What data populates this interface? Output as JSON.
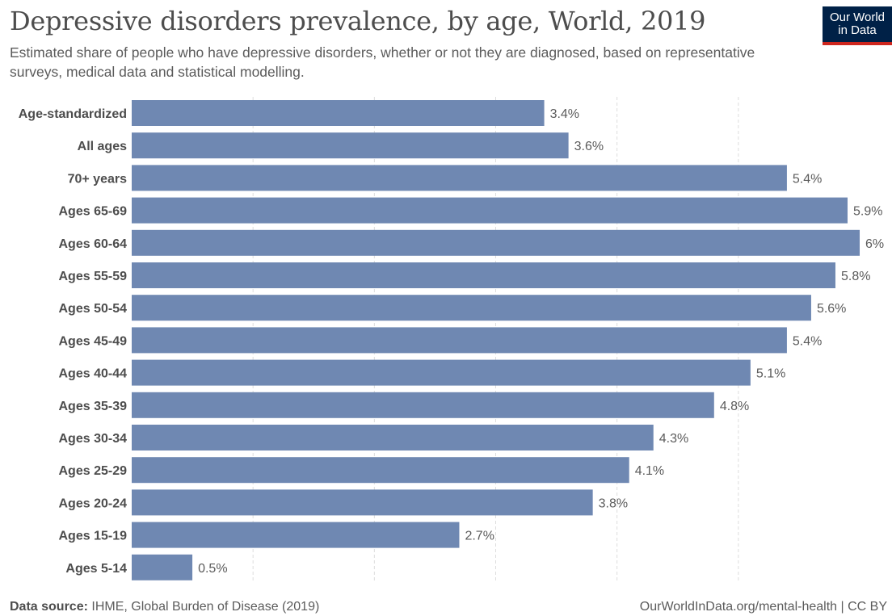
{
  "title": "Depressive disorders prevalence, by age, World, 2019",
  "subtitle": "Estimated share of people who have depressive disorders, whether or not they are diagnosed, based on representative surveys, medical data and statistical modelling.",
  "logo": {
    "line1": "Our World",
    "line2": "in Data"
  },
  "footer": {
    "source_label": "Data source:",
    "source_text": "IHME, Global Burden of Disease (2019)",
    "right_text": "OurWorldInData.org/mental-health | CC BY"
  },
  "colors": {
    "bar": "#6f88b2",
    "gridline": "#dddddd",
    "logo_background": "#002147",
    "logo_accent": "#ce261e"
  },
  "chart_data": {
    "type": "bar",
    "orientation": "horizontal",
    "categories": [
      "Age-standardized",
      "All ages",
      "70+ years",
      "Ages 65-69",
      "Ages 60-64",
      "Ages 55-59",
      "Ages 50-54",
      "Ages 45-49",
      "Ages 40-44",
      "Ages 35-39",
      "Ages 30-34",
      "Ages 25-29",
      "Ages 20-24",
      "Ages 15-19",
      "Ages 5-14"
    ],
    "values": [
      3.4,
      3.6,
      5.4,
      5.9,
      6,
      5.8,
      5.6,
      5.4,
      5.1,
      4.8,
      4.3,
      4.1,
      3.8,
      2.7,
      0.5
    ],
    "value_labels": [
      "3.4%",
      "3.6%",
      "5.4%",
      "5.9%",
      "6%",
      "5.8%",
      "5.6%",
      "5.4%",
      "5.1%",
      "4.8%",
      "4.3%",
      "4.1%",
      "3.8%",
      "2.7%",
      "0.5%"
    ],
    "unit": "%",
    "xlim": [
      0,
      5.9
    ],
    "gridlines": [
      1,
      2,
      3,
      4,
      5
    ],
    "grid": true,
    "legend": false
  }
}
